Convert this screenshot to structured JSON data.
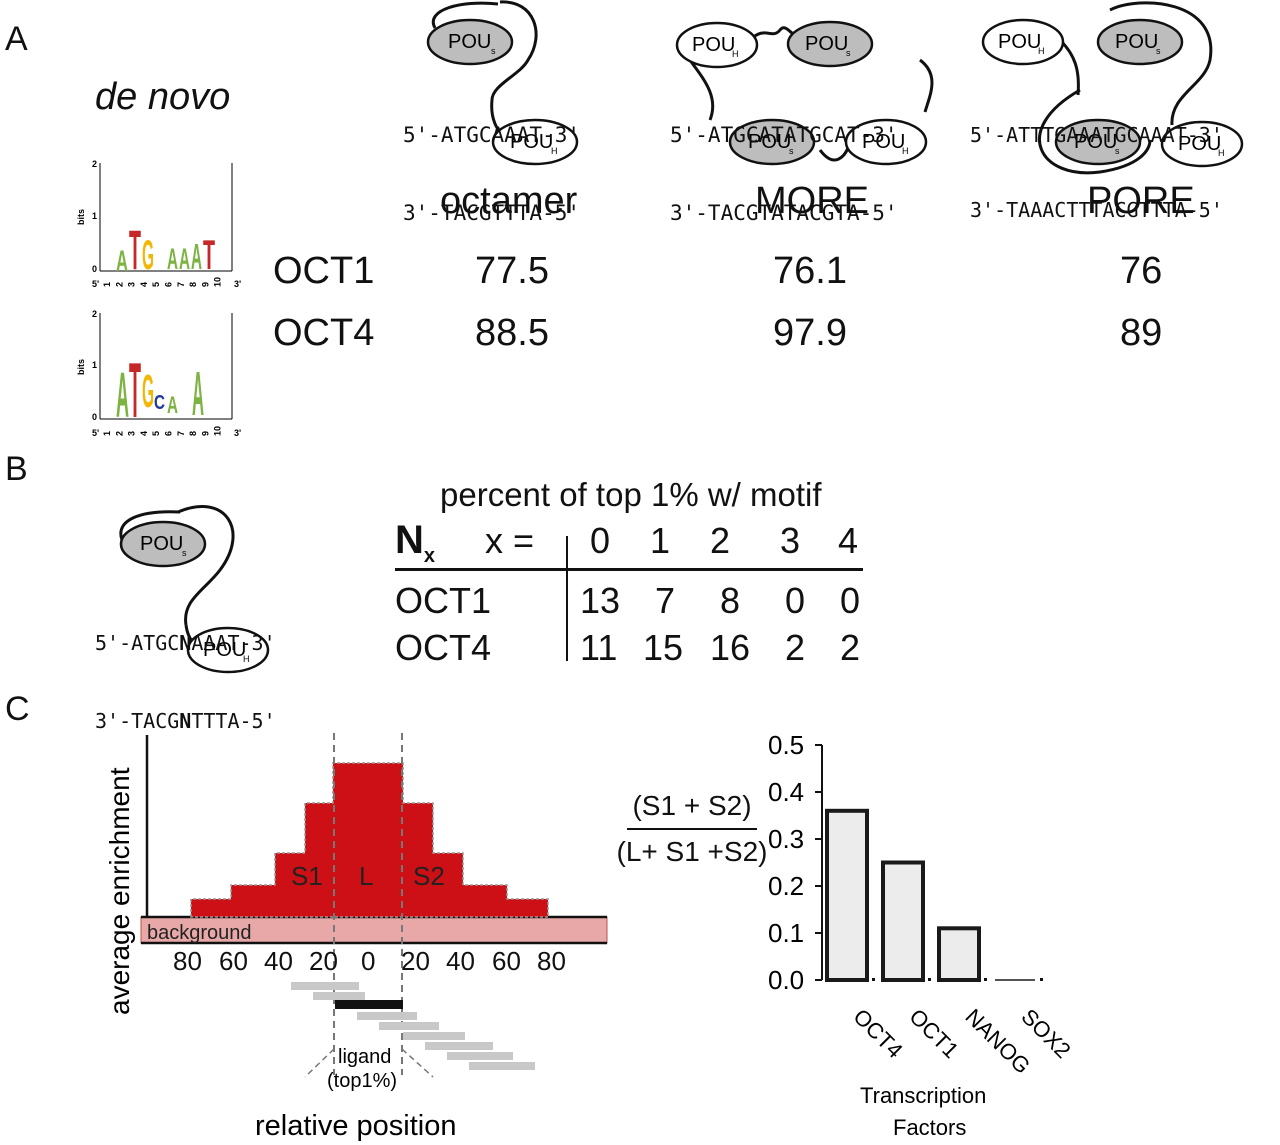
{
  "panel_letters": {
    "a": "A",
    "b": "B",
    "c": "C"
  },
  "panel_a": {
    "de_novo_label": "de novo",
    "logo_axis": {
      "ylabel": "bits",
      "five_prime": "5'",
      "three_prime": "3'"
    },
    "logo_oct1_ticks": [
      "0",
      "1",
      "2"
    ],
    "logo_oct4_ticks": [
      "0",
      "1",
      "2"
    ],
    "logo_oct1_positions": [
      "1",
      "2",
      "3",
      "4",
      "5",
      "6",
      "7",
      "8",
      "9",
      "10"
    ],
    "logo_oct4_positions": [
      "1",
      "2",
      "3",
      "4",
      "5",
      "6",
      "7",
      "8",
      "9",
      "10"
    ],
    "logo_oct1_letters": [
      "A",
      "T",
      "G",
      "A",
      "A",
      "A",
      "T"
    ],
    "logo_oct4_letters": [
      "A",
      "T",
      "G",
      "C",
      "A",
      "A"
    ],
    "pou_s": "POU",
    "pou_s_sub": "s",
    "pou_h": "POU",
    "pou_h_sub": "H",
    "octamer_seq": {
      "top": "5'-ATGCAAAT-3'",
      "bottom": "3'-TACGTTTA-5'"
    },
    "more_seq": {
      "top": "5'-ATGCATATGCAT-3'",
      "bottom": "3'-TACGTATACGTA-5'"
    },
    "pore_seq": {
      "top": "5'-ATTTGAAATGCAAAT-3'",
      "bottom": "3'-TAAACTTTACGTTTA-5'"
    },
    "columns": [
      "octamer",
      "MORE",
      "PORE"
    ],
    "rows": [
      {
        "name": "OCT1",
        "values": [
          "77.5",
          "76.1",
          "76"
        ]
      },
      {
        "name": "OCT4",
        "values": [
          "88.5",
          "97.9",
          "89"
        ]
      }
    ]
  },
  "panel_b": {
    "seq_top_pre": "5'-ATGC",
    "seq_top_n": "N",
    "seq_top_post": "AAAT-3'",
    "seq_bottom_pre": "3'-TACG",
    "seq_bottom_n": "N",
    "seq_bottom_post": "TTTA-5'",
    "table_title": "percent of top 1% w/ motif",
    "nx_label": "N",
    "nx_sub": "x",
    "x_eq": "x =",
    "x_values": [
      "0",
      "1",
      "2",
      "3",
      "4"
    ],
    "rows": [
      {
        "name": "OCT1",
        "values": [
          "13",
          "7",
          "8",
          "0",
          "0"
        ]
      },
      {
        "name": "OCT4",
        "values": [
          "11",
          "15",
          "16",
          "2",
          "2"
        ]
      }
    ]
  },
  "panel_c": {
    "ylabel": "average enrichment",
    "background_label": "background",
    "region_labels": [
      "S1",
      "L",
      "S2"
    ],
    "x_ticks": [
      "80",
      "60",
      "40",
      "20",
      "0",
      "20",
      "40",
      "60",
      "80"
    ],
    "xlabel": "relative position",
    "ligand_label_1": "ligand",
    "ligand_label_2": "(top1%)",
    "fraction_numerator": "(S1 + S2)",
    "fraction_denominator": "(L+ S1 +S2)",
    "colors": {
      "region": "#cc1016",
      "background": "#e8a8a8",
      "bar_fill": "#ececec"
    }
  },
  "chart_data": {
    "type": "bar",
    "categories": [
      "OCT4",
      "OCT1",
      "NANOG",
      "SOX2"
    ],
    "values": [
      0.36,
      0.25,
      0.11,
      0.0
    ],
    "yticks": [
      "0.0",
      "0.1",
      "0.2",
      "0.3",
      "0.4",
      "0.5"
    ],
    "ylim": [
      0,
      0.5
    ],
    "xlabel_line1": "Transcription",
    "xlabel_line2": "Factors"
  }
}
